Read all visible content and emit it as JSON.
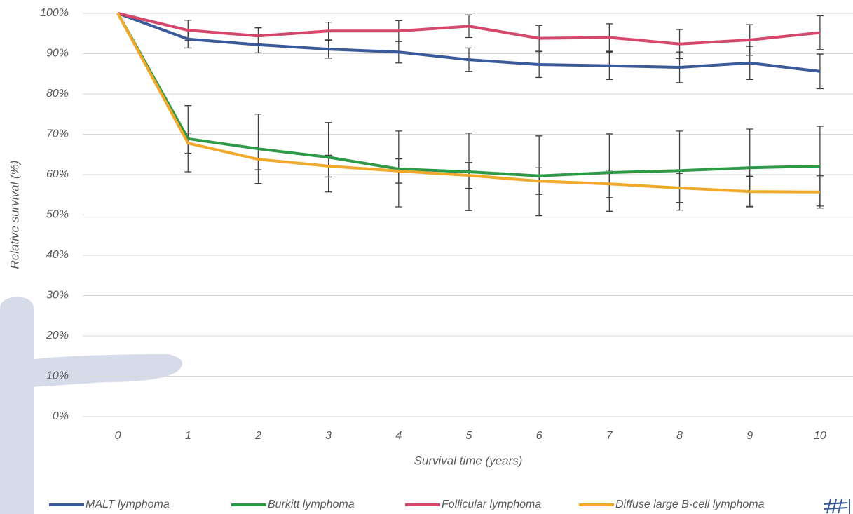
{
  "chart_data": {
    "type": "line",
    "x": [
      0,
      1,
      2,
      3,
      4,
      5,
      6,
      7,
      8,
      9,
      10
    ],
    "xlim": [
      -0.5,
      10.5
    ],
    "xticks": [
      0,
      1,
      2,
      3,
      4,
      5,
      6,
      7,
      8,
      9,
      10
    ],
    "ylim": [
      0,
      100
    ],
    "yticks": [
      {
        "value": 0,
        "label": "0%"
      },
      {
        "value": 10,
        "label": "10%"
      },
      {
        "value": 20,
        "label": "20%"
      },
      {
        "value": 30,
        "label": "30%"
      },
      {
        "value": 40,
        "label": "40%"
      },
      {
        "value": 50,
        "label": "50%"
      },
      {
        "value": 60,
        "label": "60%"
      },
      {
        "value": 70,
        "label": "70%"
      },
      {
        "value": 80,
        "label": "80%"
      },
      {
        "value": 90,
        "label": "90%"
      },
      {
        "value": 100,
        "label": "100%"
      }
    ],
    "xlabel": "Survival time (years)",
    "ylabel": "Relative survival (%)",
    "grid": true,
    "legend": "bottom",
    "series": [
      {
        "name": "MALT lymphoma",
        "color": "#3b5a9a",
        "values": [
          100,
          93.6,
          92.2,
          91.1,
          90.4,
          88.5,
          87.3,
          87.0,
          86.6,
          87.7,
          85.6
        ],
        "errors": [
          null,
          2.2,
          2.0,
          2.2,
          2.7,
          2.9,
          3.2,
          3.4,
          3.8,
          4.1,
          4.3
        ]
      },
      {
        "name": "Burkitt lymphoma",
        "color": "#2e9a48",
        "values": [
          100,
          68.9,
          66.4,
          64.3,
          61.4,
          60.7,
          59.7,
          60.5,
          61.0,
          61.7,
          62.1
        ],
        "errors": [
          null,
          8.2,
          8.6,
          8.6,
          9.4,
          9.6,
          9.9,
          9.6,
          9.8,
          9.6,
          9.9
        ]
      },
      {
        "name": "Follicular lymphoma",
        "color": "#d5486b",
        "values": [
          100,
          95.8,
          94.4,
          95.6,
          95.6,
          96.8,
          93.8,
          94.0,
          92.4,
          93.4,
          95.2
        ],
        "errors": [
          null,
          2.5,
          2.0,
          2.2,
          2.6,
          2.8,
          3.2,
          3.4,
          3.6,
          3.8,
          4.2
        ]
      },
      {
        "name": "Diffuse large B-cell lymphoma",
        "color": "#f0a92b",
        "values": [
          100,
          67.8,
          63.8,
          62.1,
          60.9,
          59.8,
          58.4,
          57.7,
          56.7,
          55.8,
          55.7
        ],
        "errors": [
          null,
          2.5,
          2.6,
          2.7,
          3.0,
          3.2,
          3.3,
          3.4,
          3.6,
          3.8,
          4.0
        ]
      }
    ]
  }
}
